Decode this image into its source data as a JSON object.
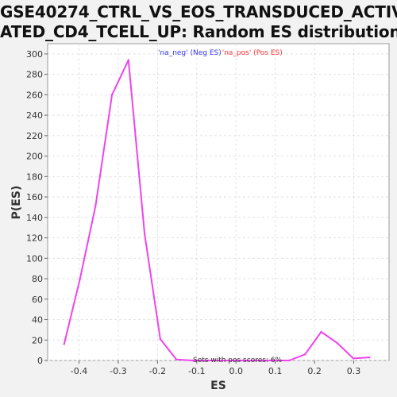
{
  "chart_data": {
    "type": "line",
    "title_line1": "GSE40274_CTRL_VS_EOS_TRANSDUCED_ACTIV",
    "title_line2": "ATED_CD4_TCELL_UP: Random ES distribution",
    "xlabel": "ES",
    "ylabel": "P(ES)",
    "xlim": [
      -0.48,
      0.39
    ],
    "ylim": [
      0,
      310
    ],
    "x_ticks": [
      -0.4,
      -0.3,
      -0.2,
      -0.1,
      0.0,
      0.1,
      0.2,
      0.3
    ],
    "x_tick_labels": [
      "-0.4",
      "-0.3",
      "-0.2",
      "-0.1",
      "0.0",
      "0.1",
      "0.2",
      "0.3"
    ],
    "y_ticks": [
      0,
      20,
      40,
      60,
      80,
      100,
      120,
      140,
      160,
      180,
      200,
      220,
      240,
      260,
      280,
      300
    ],
    "y_tick_labels": [
      "0",
      "20",
      "40",
      "60",
      "80",
      "100",
      "120",
      "140",
      "160",
      "180",
      "200",
      "220",
      "240",
      "260",
      "280",
      "300"
    ],
    "grid": true,
    "legend": {
      "placement": "top-center",
      "entries": [
        {
          "text": "'na_neg' (Neg ES)",
          "color": "#3333ff"
        },
        {
          "text": "'na_pos' (Pos ES)",
          "color": "#ff3333"
        }
      ]
    },
    "annotation": "Sets with pos scores: 6%",
    "series": [
      {
        "color": "#ee44ee",
        "x": [
          -0.438,
          -0.398,
          -0.358,
          -0.316,
          -0.274,
          -0.233,
          -0.193,
          -0.152,
          -0.111,
          -0.07,
          -0.029,
          0.012,
          0.053,
          0.094,
          0.135,
          0.176,
          0.217,
          0.258,
          0.299,
          0.34
        ],
        "y": [
          16,
          79,
          151,
          260,
          294,
          124,
          21,
          1,
          0,
          0,
          0,
          0,
          0,
          0,
          0,
          6,
          28,
          17,
          2,
          3
        ]
      }
    ]
  }
}
